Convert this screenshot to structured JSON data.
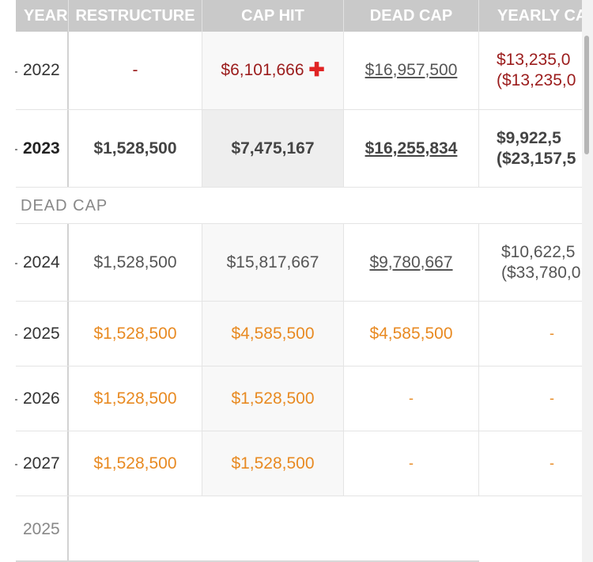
{
  "headers": {
    "year": "YEAR",
    "restructure": "RESTRUCTURE",
    "cap_hit": "CAP HIT",
    "dead_cap": "DEAD CAP",
    "yearly": "YEARLY CA"
  },
  "rows": [
    {
      "year": "2022",
      "restructure": "-",
      "cap_hit": "$6,101,666",
      "dead_cap": "$16,957,500",
      "yearly_1": "$13,235,0",
      "yearly_2": "($13,235,0"
    },
    {
      "year": "2023",
      "restructure": "$1,528,500",
      "cap_hit": "$7,475,167",
      "dead_cap": "$16,255,834",
      "yearly_1": "$9,922,5",
      "yearly_2": "($23,157,5"
    }
  ],
  "section_label": "DEAD CAP",
  "dead_rows": [
    {
      "year": "2024",
      "restructure": "$1,528,500",
      "cap_hit": "$15,817,667",
      "dead_cap": "$9,780,667",
      "yearly_1": "$10,622,5",
      "yearly_2": "($33,780,0"
    },
    {
      "year": "2025",
      "restructure": "$1,528,500",
      "cap_hit": "$4,585,500",
      "dead_cap": "$4,585,500",
      "yearly": "-"
    },
    {
      "year": "2026",
      "restructure": "$1,528,500",
      "cap_hit": "$1,528,500",
      "dead_cap": "-",
      "yearly": "-"
    },
    {
      "year": "2027",
      "restructure": "$1,528,500",
      "cap_hit": "$1,528,500",
      "dead_cap": "-",
      "yearly": "-"
    }
  ],
  "footer_year": "2025",
  "colors": {
    "header_bg": "#c9c9c9",
    "red_value": "#9b1c1c",
    "plus_icon": "#e02424",
    "orange_value": "#e88a22"
  },
  "icons": {
    "cap_hit_2022": "plus-icon"
  }
}
